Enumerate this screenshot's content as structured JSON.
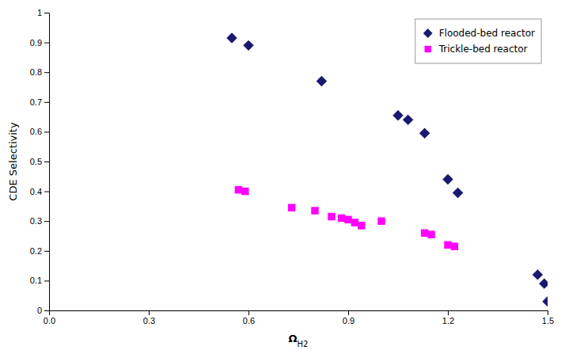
{
  "chart_data": {
    "type": "scatter",
    "x_label": "ΩH2",
    "y_label": "CDE Selectivity",
    "xlim": [
      0,
      1.5
    ],
    "ylim": [
      0,
      1.0
    ],
    "xticks": [
      {
        "value": 0,
        "label": "0.0"
      },
      0.3,
      0.6,
      0.9,
      1.2,
      1.5
    ],
    "yticks": [
      0,
      0.1,
      0.2,
      0.3,
      0.4,
      0.5,
      0.6,
      0.7,
      0.8,
      0.9,
      1
    ],
    "grid": false,
    "legend": "upper right",
    "series": [
      {
        "name": "Flooded-bed reactor",
        "color": "#191970",
        "marker": "diamond",
        "x": [
          0.55,
          0.6,
          0.82,
          1.05,
          1.08,
          1.13,
          1.2,
          1.23,
          1.47,
          1.49,
          1.5
        ],
        "values": [
          0.915,
          0.89,
          0.77,
          0.655,
          0.64,
          0.595,
          0.44,
          0.395,
          0.12,
          0.09,
          0.03
        ]
      },
      {
        "name": "Trickle-bed reactor",
        "color": "#ff00ff",
        "marker": "square",
        "x": [
          0.57,
          0.59,
          0.73,
          0.8,
          0.85,
          0.88,
          0.9,
          0.92,
          0.94,
          1.0,
          1.13,
          1.15,
          1.2,
          1.22
        ],
        "values": [
          0.405,
          0.4,
          0.345,
          0.335,
          0.315,
          0.31,
          0.305,
          0.295,
          0.285,
          0.3,
          0.26,
          0.255,
          0.22,
          0.215
        ]
      }
    ]
  }
}
